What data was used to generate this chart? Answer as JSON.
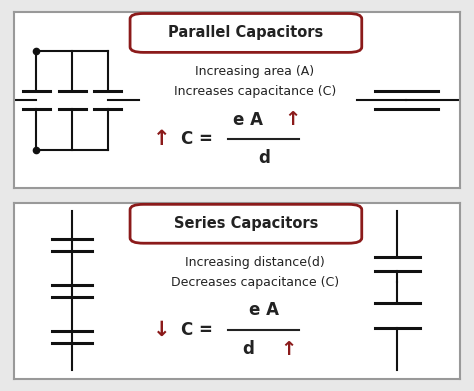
{
  "bg_color": "#e8e8e8",
  "panel_bg": "#ffffff",
  "border_color": "#999999",
  "title_box_color": "#8B1A1A",
  "arrow_color": "#8B1A1A",
  "text_color": "#222222",
  "line_color": "#111111",
  "panel1_title": "Parallel Capacitors",
  "panel1_desc1": "Increasing area (A)",
  "panel1_desc2": "Increases capacitance (C)",
  "panel2_title": "Series Capacitors",
  "panel2_desc1": "Increasing distance(d)",
  "panel2_desc2": "Decreases capacitance (C)"
}
